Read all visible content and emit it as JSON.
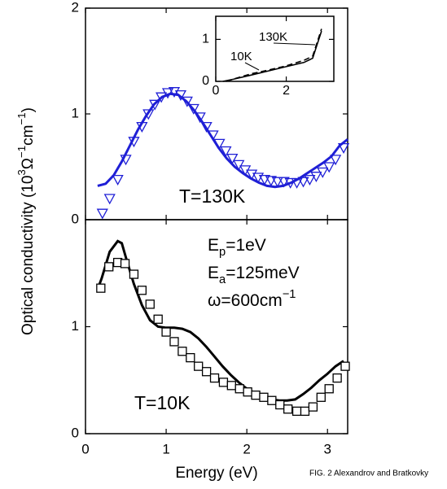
{
  "figure": {
    "ylabel_parts": [
      "Optical conductivity (10",
      "3",
      "Ω",
      "−1",
      "cm",
      "−1",
      ")"
    ],
    "caption": "FIG. 2 Alexandrov and Bratkovky"
  },
  "chart_data": [
    {
      "type": "line",
      "xlim": [
        0,
        3.25
      ],
      "ylim": [
        0,
        2
      ],
      "xticks": [
        0,
        1,
        2,
        3
      ],
      "yticks": [
        0,
        1,
        2
      ],
      "xtick_labels": false,
      "label": "T=130K",
      "series": [
        {
          "color": "#1f1fd6",
          "line": "solid",
          "marker": null,
          "x": [
            0.15,
            0.25,
            0.35,
            0.45,
            0.55,
            0.65,
            0.75,
            0.85,
            0.95,
            1.05,
            1.15,
            1.25,
            1.35,
            1.45,
            1.55,
            1.65,
            1.75,
            1.85,
            1.95,
            2.05,
            2.15,
            2.25,
            2.35,
            2.45,
            2.55,
            2.65,
            2.75,
            2.85,
            2.95,
            3.05,
            3.15,
            3.25
          ],
          "values": [
            0.32,
            0.34,
            0.42,
            0.55,
            0.7,
            0.85,
            0.98,
            1.09,
            1.16,
            1.19,
            1.18,
            1.12,
            1.03,
            0.92,
            0.8,
            0.68,
            0.58,
            0.5,
            0.44,
            0.39,
            0.35,
            0.32,
            0.31,
            0.32,
            0.35,
            0.39,
            0.44,
            0.49,
            0.54,
            0.6,
            0.7,
            0.76
          ]
        },
        {
          "color": "#1f1fd6",
          "line": null,
          "marker": "triangle",
          "x": [
            0.21,
            0.3,
            0.4,
            0.5,
            0.6,
            0.7,
            0.78,
            0.86,
            0.94,
            1.02,
            1.1,
            1.18,
            1.26,
            1.34,
            1.42,
            1.5,
            1.58,
            1.66,
            1.74,
            1.82,
            1.9,
            1.98,
            2.06,
            2.14,
            2.22,
            2.3,
            2.38,
            2.46,
            2.54,
            2.62,
            2.7,
            2.78,
            2.86,
            2.94,
            3.02,
            3.1,
            3.2
          ],
          "values": [
            0.06,
            0.2,
            0.38,
            0.57,
            0.74,
            0.88,
            1.0,
            1.09,
            1.16,
            1.2,
            1.21,
            1.18,
            1.12,
            1.05,
            0.97,
            0.88,
            0.8,
            0.72,
            0.65,
            0.58,
            0.52,
            0.47,
            0.43,
            0.4,
            0.38,
            0.37,
            0.36,
            0.36,
            0.35,
            0.35,
            0.36,
            0.38,
            0.41,
            0.45,
            0.5,
            0.57,
            0.68
          ]
        }
      ]
    },
    {
      "type": "line",
      "xlim": [
        0,
        3.25
      ],
      "ylim": [
        0,
        2
      ],
      "xticks": [
        0,
        1,
        2,
        3
      ],
      "yticks": [
        0,
        1
      ],
      "xtick_labels": true,
      "xlabel": "Energy (eV)",
      "label": "T=10K",
      "params": [
        {
          "parts": [
            "E",
            "p",
            "=1eV"
          ],
          "shift": "sub"
        },
        {
          "parts": [
            "E",
            "a",
            "=125meV"
          ],
          "shift": "sub"
        },
        {
          "parts": [
            "ω=600cm",
            "−1"
          ],
          "shift": "super"
        }
      ],
      "series": [
        {
          "color": "#000000",
          "line": "solid",
          "marker": null,
          "x": [
            0.15,
            0.2,
            0.3,
            0.4,
            0.45,
            0.5,
            0.6,
            0.7,
            0.8,
            0.9,
            1.0,
            1.1,
            1.2,
            1.3,
            1.4,
            1.5,
            1.6,
            1.7,
            1.8,
            1.9,
            2.0,
            2.1,
            2.2,
            2.3,
            2.4,
            2.5,
            2.6,
            2.7,
            2.8,
            2.9,
            3.0,
            3.1,
            3.2
          ],
          "values": [
            1.35,
            1.45,
            1.7,
            1.8,
            1.78,
            1.65,
            1.4,
            1.2,
            1.06,
            1.0,
            0.99,
            0.99,
            0.98,
            0.95,
            0.89,
            0.81,
            0.72,
            0.63,
            0.55,
            0.48,
            0.42,
            0.38,
            0.35,
            0.32,
            0.31,
            0.31,
            0.32,
            0.37,
            0.43,
            0.5,
            0.56,
            0.63,
            0.68
          ]
        },
        {
          "color": "#000000",
          "line": null,
          "marker": "square",
          "x": [
            0.19,
            0.29,
            0.4,
            0.49,
            0.6,
            0.7,
            0.8,
            0.9,
            1.0,
            1.1,
            1.2,
            1.3,
            1.4,
            1.5,
            1.6,
            1.71,
            1.81,
            1.91,
            2.01,
            2.11,
            2.21,
            2.31,
            2.41,
            2.51,
            2.62,
            2.72,
            2.82,
            2.92,
            3.02,
            3.12,
            3.22
          ],
          "values": [
            1.36,
            1.56,
            1.6,
            1.59,
            1.49,
            1.34,
            1.21,
            1.07,
            0.95,
            0.86,
            0.77,
            0.71,
            0.63,
            0.58,
            0.52,
            0.48,
            0.45,
            0.42,
            0.39,
            0.36,
            0.34,
            0.31,
            0.27,
            0.23,
            0.21,
            0.21,
            0.25,
            0.34,
            0.42,
            0.52,
            0.63
          ]
        }
      ]
    },
    {
      "type": "line",
      "xlim": [
        0,
        3.35
      ],
      "ylim": [
        0,
        1.55
      ],
      "xticks": [
        0,
        2
      ],
      "yticks": [
        0,
        1
      ],
      "xtick_labels": true,
      "series": [
        {
          "name": "10K",
          "color": "#000000",
          "line": "solid",
          "marker": null,
          "x": [
            0.2,
            0.5,
            1.0,
            1.5,
            2.0,
            2.5,
            2.75,
            3.0
          ],
          "values": [
            0,
            0.05,
            0.15,
            0.25,
            0.35,
            0.45,
            0.55,
            1.2
          ]
        },
        {
          "name": "130K",
          "color": "#000000",
          "line": "dashed",
          "marker": null,
          "x": [
            0.3,
            0.6,
            1.0,
            1.5,
            2.0,
            2.5,
            2.75,
            3.0
          ],
          "values": [
            0,
            0.08,
            0.18,
            0.27,
            0.37,
            0.5,
            0.6,
            1.25
          ]
        }
      ]
    }
  ]
}
